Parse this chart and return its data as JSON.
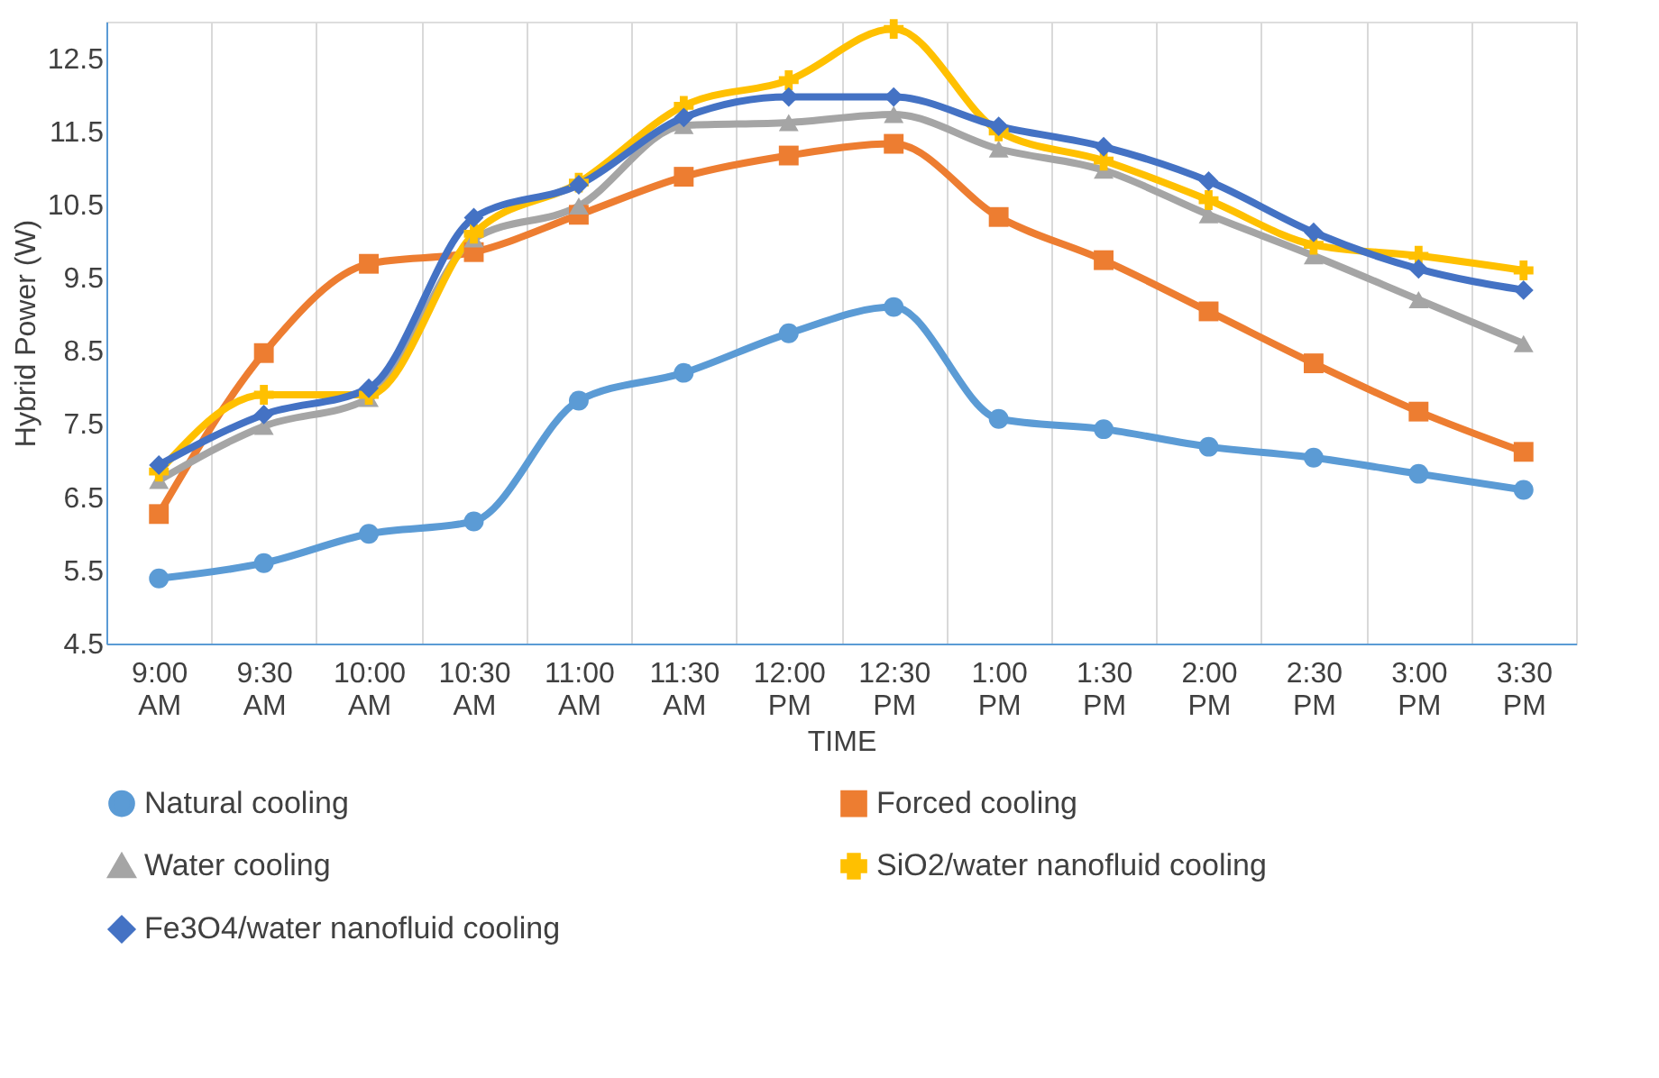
{
  "chart_data": {
    "type": "line",
    "xlabel": "TIME",
    "ylabel": "Hybrid Power (W)",
    "categories": [
      "9:00 AM",
      "9:30 AM",
      "10:00 AM",
      "10:30 AM",
      "11:00 AM",
      "11:30 AM",
      "12:00 PM",
      "12:30 PM",
      "1:00 PM",
      "1:30 PM",
      "2:00 PM",
      "2:30 PM",
      "3:00 PM",
      "3:30 PM"
    ],
    "ylim": [
      4.5,
      13.0
    ],
    "yticks": [
      4.5,
      5.5,
      6.5,
      7.5,
      8.5,
      9.5,
      10.5,
      11.5,
      12.5
    ],
    "grid": "x",
    "legend": "bottom",
    "series": [
      {
        "name": "Natural cooling",
        "color": "#5b9bd5",
        "marker": "circle",
        "values": [
          5.39,
          5.6,
          6.0,
          6.17,
          7.82,
          8.2,
          8.74,
          9.1,
          7.57,
          7.43,
          7.19,
          7.04,
          6.82,
          6.6
        ]
      },
      {
        "name": "Forced cooling",
        "color": "#ed7d31",
        "marker": "square",
        "values": [
          6.27,
          8.47,
          9.69,
          9.85,
          10.36,
          10.88,
          11.17,
          11.33,
          10.33,
          9.74,
          9.04,
          8.33,
          7.67,
          7.12
        ]
      },
      {
        "name": "Water cooling",
        "color": "#a5a5a5",
        "marker": "triangle",
        "values": [
          6.73,
          7.47,
          7.85,
          10.03,
          10.48,
          11.58,
          11.62,
          11.73,
          11.26,
          10.97,
          10.36,
          9.8,
          9.2,
          8.6
        ]
      },
      {
        "name": "SiO2/water nanofluid cooling",
        "color": "#ffc000",
        "marker": "cross",
        "values": [
          6.85,
          7.9,
          7.9,
          10.1,
          10.8,
          11.85,
          12.2,
          12.9,
          11.5,
          11.1,
          10.56,
          9.95,
          9.8,
          9.6
        ]
      },
      {
        "name": "Fe3O4/water nanofluid cooling",
        "color": "#4472c4",
        "marker": "diamond",
        "values": [
          6.94,
          7.63,
          7.99,
          10.32,
          10.77,
          11.69,
          11.97,
          11.97,
          11.57,
          11.29,
          10.82,
          10.12,
          9.62,
          9.33
        ]
      }
    ]
  }
}
